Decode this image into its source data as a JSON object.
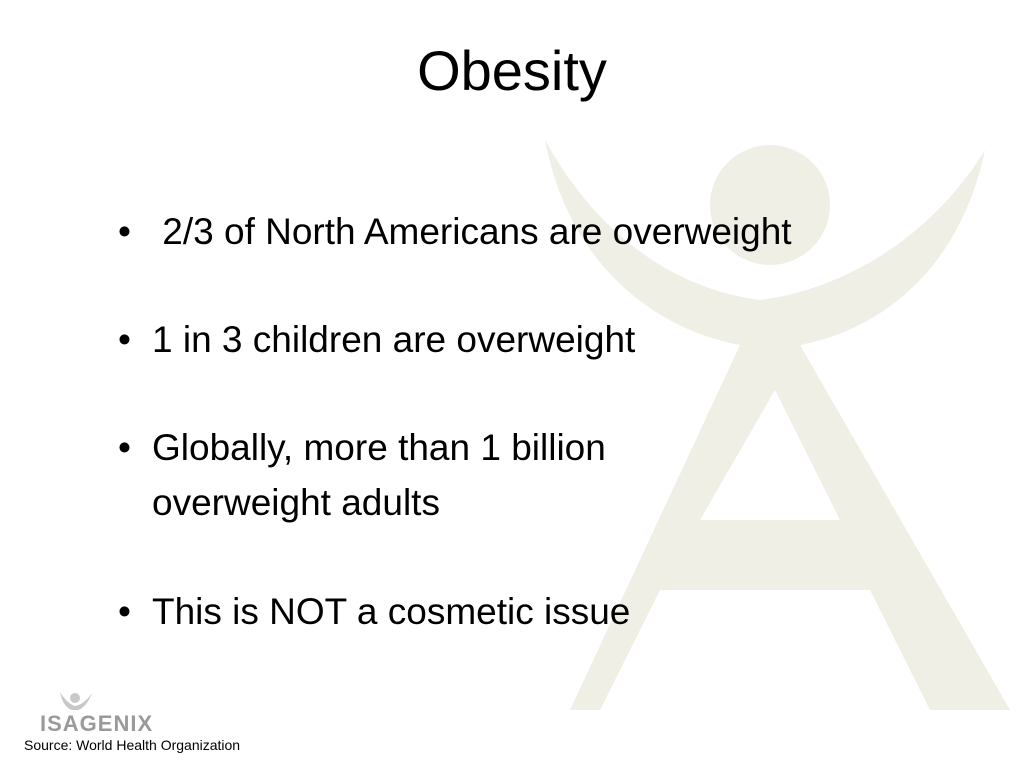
{
  "header": {
    "title": "Obesity"
  },
  "bullets": [
    {
      "lines": [
        " 2/3 of North Americans are overweight"
      ]
    },
    {
      "lines": [
        "1 in 3 children are overweight"
      ]
    },
    {
      "lines": [
        "Globally, more than 1 billion",
        "overweight adults"
      ]
    },
    {
      "lines": [
        "This is NOT a cosmetic issue"
      ]
    }
  ],
  "logo": {
    "text": "ISAGENIX"
  },
  "footer": {
    "source": "Source: World Health Organization"
  }
}
